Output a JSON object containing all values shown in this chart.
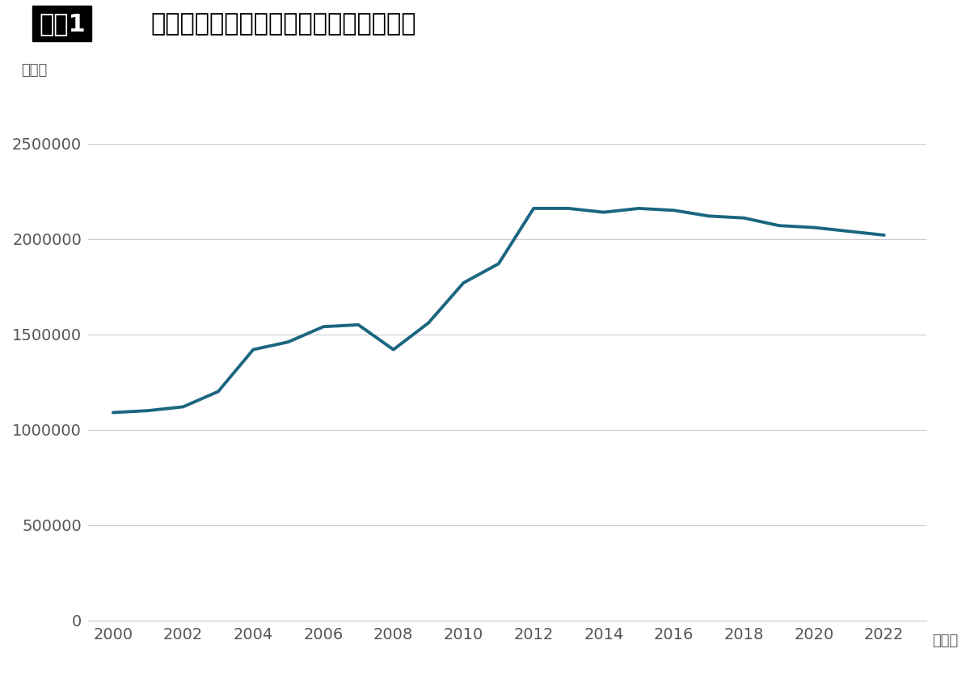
{
  "title_box_text": "図表1",
  "title_main_text": "厚労省による月平均の生活保護者数推移",
  "ylabel": "（人）",
  "xlabel_suffix": "（年）",
  "background_color": "#ffffff",
  "line_color": "#1a6680",
  "line_width": 2.8,
  "years": [
    2000,
    2001,
    2002,
    2003,
    2004,
    2005,
    2006,
    2007,
    2008,
    2009,
    2010,
    2011,
    2012,
    2013,
    2014,
    2015,
    2016,
    2017,
    2018,
    2019,
    2020,
    2021,
    2022
  ],
  "values": [
    1090000,
    1100000,
    1120000,
    1200000,
    1420000,
    1460000,
    1540000,
    1550000,
    1420000,
    1560000,
    1770000,
    1870000,
    2160000,
    2160000,
    2140000,
    2160000,
    2150000,
    2120000,
    2110000,
    2070000,
    2060000,
    2040000,
    2020000
  ],
  "yticks": [
    0,
    500000,
    1000000,
    1500000,
    2000000,
    2500000
  ],
  "xticks": [
    2000,
    2002,
    2004,
    2006,
    2008,
    2010,
    2012,
    2014,
    2016,
    2018,
    2020,
    2022
  ],
  "ylim": [
    0,
    2700000
  ],
  "xlim": [
    1999.3,
    2023.2
  ],
  "grid_color": "#cccccc",
  "tick_color": "#555555",
  "title_fontsize": 22,
  "tick_fontsize": 14,
  "ylabel_fontsize": 13,
  "xlabel_suffix_fontsize": 13
}
